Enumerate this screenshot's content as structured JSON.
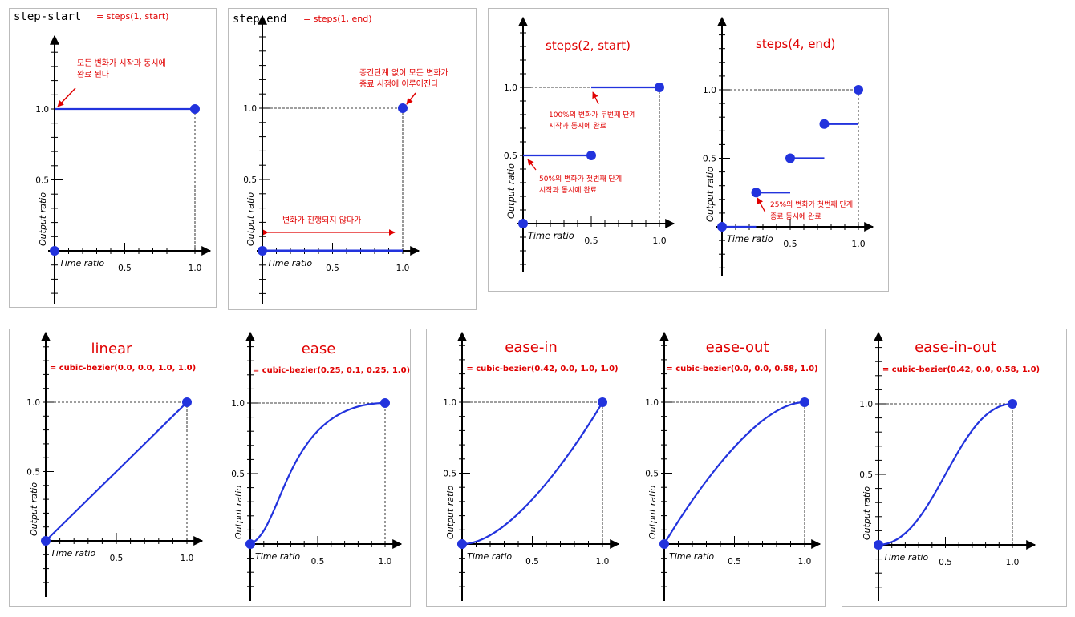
{
  "colors": {
    "curve": "#2233dd",
    "annotation": "#e00000",
    "axis": "#000000",
    "frame": "#bbbbbb"
  },
  "axis": {
    "x_label": "Time ratio",
    "y_label": "Output ratio",
    "tick_mid": "0.5",
    "tick_max": "1.0"
  },
  "step_start": {
    "keyword": "step-start",
    "equiv": "= steps(1, start)",
    "note": [
      "모든 변화가 시작과 동시에",
      "완료 된다"
    ]
  },
  "step_end": {
    "keyword": "step-end",
    "equiv": "= steps(1, end)",
    "note_top": [
      "중간단계 없이 모든 변화가",
      "종료 시점에 이루어진다"
    ],
    "note_span": "변화가 진행되지 않다가"
  },
  "steps2": {
    "title": "steps(2, start)",
    "note_1": [
      "100%의 변화가 두번째 단계",
      "시작과 동시에 완료"
    ],
    "note_2": [
      "50%의 변화가 첫번째 단계",
      "시작과 동시에 완료"
    ]
  },
  "steps4": {
    "title": "steps(4, end)",
    "note": [
      "25%의 변화가 첫번째 단계",
      "종료 동시에 완료"
    ]
  },
  "timing_functions": [
    {
      "name": "linear",
      "bezier": "= cubic-bezier(0.0, 0.0, 1.0, 1.0)"
    },
    {
      "name": "ease",
      "bezier": "= cubic-bezier(0.25, 0.1, 0.25, 1.0)"
    },
    {
      "name": "ease-in",
      "bezier": "= cubic-bezier(0.42, 0.0, 1.0, 1.0)"
    },
    {
      "name": "ease-out",
      "bezier": "= cubic-bezier(0.0, 0.0, 0.58, 1.0)"
    },
    {
      "name": "ease-in-out",
      "bezier": "= cubic-bezier(0.42, 0.0, 0.58, 1.0)"
    }
  ],
  "chart_data": [
    {
      "type": "line",
      "name": "step-start",
      "x": [
        0,
        0,
        1
      ],
      "y": [
        0,
        1,
        1
      ],
      "xlim": [
        0,
        1
      ],
      "ylim": [
        0,
        1
      ]
    },
    {
      "type": "line",
      "name": "step-end",
      "x": [
        0,
        1,
        1
      ],
      "y": [
        0,
        0,
        1
      ],
      "xlim": [
        0,
        1
      ],
      "ylim": [
        0,
        1
      ]
    },
    {
      "type": "line",
      "name": "steps(2, start)",
      "segments": [
        [
          0,
          0.5,
          0.5
        ],
        [
          0.5,
          1,
          1
        ]
      ],
      "xlim": [
        0,
        1
      ],
      "ylim": [
        0,
        1
      ]
    },
    {
      "type": "line",
      "name": "steps(4, end)",
      "segments": [
        [
          0,
          0.25,
          0
        ],
        [
          0.25,
          0.5,
          0.25
        ],
        [
          0.5,
          0.75,
          0.5
        ],
        [
          0.75,
          1,
          0.75
        ]
      ],
      "end_point": [
        1,
        1
      ],
      "xlim": [
        0,
        1
      ],
      "ylim": [
        0,
        1
      ]
    },
    {
      "type": "line",
      "name": "linear",
      "bezier": [
        0.0,
        0.0,
        1.0,
        1.0
      ],
      "xlim": [
        0,
        1
      ],
      "ylim": [
        0,
        1
      ]
    },
    {
      "type": "line",
      "name": "ease",
      "bezier": [
        0.25,
        0.1,
        0.25,
        1.0
      ],
      "xlim": [
        0,
        1
      ],
      "ylim": [
        0,
        1
      ]
    },
    {
      "type": "line",
      "name": "ease-in",
      "bezier": [
        0.42,
        0.0,
        1.0,
        1.0
      ],
      "xlim": [
        0,
        1
      ],
      "ylim": [
        0,
        1
      ]
    },
    {
      "type": "line",
      "name": "ease-out",
      "bezier": [
        0.0,
        0.0,
        0.58,
        1.0
      ],
      "xlim": [
        0,
        1
      ],
      "ylim": [
        0,
        1
      ]
    },
    {
      "type": "line",
      "name": "ease-in-out",
      "bezier": [
        0.42,
        0.0,
        0.58,
        1.0
      ],
      "xlim": [
        0,
        1
      ],
      "ylim": [
        0,
        1
      ]
    }
  ]
}
